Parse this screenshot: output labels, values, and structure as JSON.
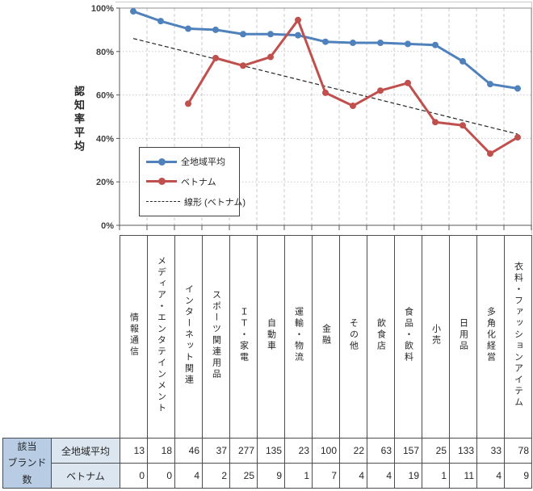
{
  "chart_data": {
    "type": "line",
    "title": "",
    "xlabel": "",
    "ylabel": "認知率平均",
    "ylim": [
      0,
      100
    ],
    "ytick_step": 20,
    "ytick_suffix": "%",
    "grid": true,
    "legend_position": "inside-left-bottom",
    "categories": [
      "情報通信",
      "メディア・エンタテインメント",
      "インターネット関連",
      "スポーツ関連用品",
      "ＩＴ・家電",
      "自動車",
      "運輸・物流",
      "金融",
      "その他",
      "飲食店",
      "食品・飲料",
      "小売",
      "日用品",
      "多角化経営",
      "衣料・ファッションアイテム"
    ],
    "series": [
      {
        "name": "全地域平均",
        "color": "#4f81bd",
        "values": [
          98.5,
          94,
          90.5,
          90,
          88,
          88,
          87.5,
          84.5,
          84,
          84,
          83.5,
          83,
          75.5,
          65,
          63
        ]
      },
      {
        "name": "ベトナム",
        "color": "#c0504d",
        "values": [
          null,
          null,
          56,
          77,
          73.5,
          77.5,
          94.5,
          61,
          55,
          62,
          65.5,
          47.5,
          46,
          33,
          40.5
        ]
      }
    ],
    "trendline": {
      "name": "線形 (ベトナム)",
      "color": "#262626",
      "start": 86,
      "end": 42
    }
  },
  "table": {
    "corner_header": "該当\nブランド\n数",
    "rows": [
      {
        "label": "全地域平均",
        "values": [
          13,
          18,
          46,
          37,
          277,
          135,
          23,
          100,
          22,
          63,
          157,
          25,
          133,
          33,
          78
        ]
      },
      {
        "label": "ベトナム",
        "values": [
          0,
          0,
          4,
          2,
          25,
          9,
          1,
          7,
          4,
          4,
          19,
          1,
          11,
          4,
          9
        ]
      }
    ]
  },
  "colors": {
    "corner_fill": "#b8cce4",
    "row_label_fill": "#dce6f1",
    "grid": "#c9c9c9",
    "plot_border": "#8c8c8c",
    "axis_line": "#595959",
    "axis_text": "#404040",
    "table_border": "#4d4d4d"
  }
}
